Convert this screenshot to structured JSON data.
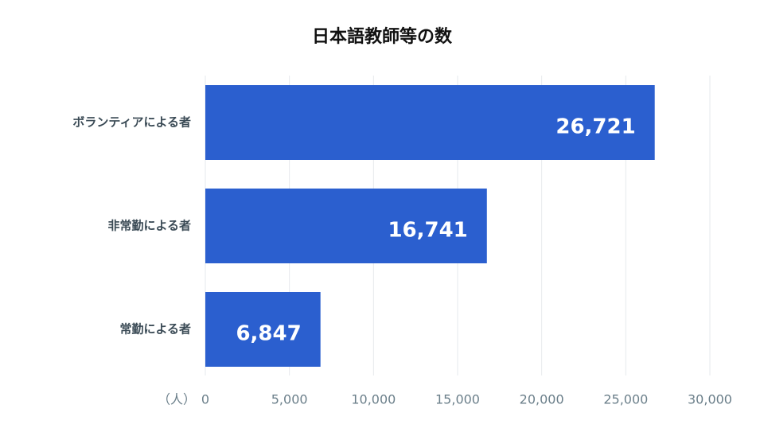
{
  "chart_data": {
    "type": "barh",
    "title": "日本語教師等の数",
    "categories": [
      "ボランティアによる者",
      "非常勤による者",
      "常勤による者"
    ],
    "values": [
      26721,
      16741,
      6847
    ],
    "value_labels": [
      "26,721",
      "16,741",
      "6,847"
    ],
    "color": "#2b5fcf",
    "unit_label": "（人）",
    "xlim": [
      0,
      30000
    ],
    "xticks": [
      0,
      {
        "value": 5000,
        "label": "5,000"
      },
      {
        "value": 10000,
        "label": "10,000"
      },
      {
        "value": 15000,
        "label": "15,000"
      },
      {
        "value": 20000,
        "label": "20,000"
      },
      {
        "value": 25000,
        "label": "25,000"
      },
      {
        "value": 30000,
        "label": "30,000"
      }
    ],
    "grid": true
  }
}
